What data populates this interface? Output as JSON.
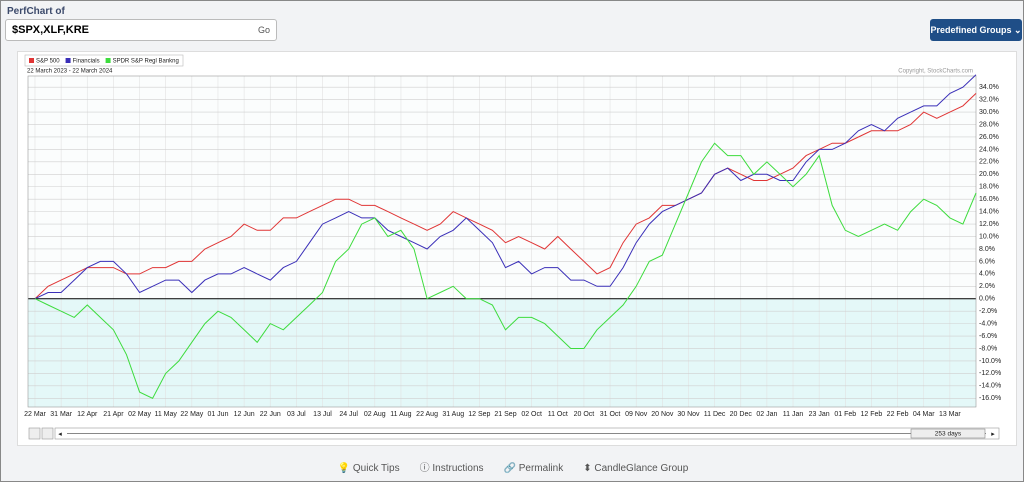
{
  "header": {
    "title": "PerfChart of",
    "symbols": "$SPX,XLF,KRE",
    "go": "Go",
    "groups_button": "Predefined Groups"
  },
  "chart_data": {
    "type": "line",
    "subtitle": "22 March 2023 - 22 March 2024",
    "annotation": "Copyright, StockCharts.com",
    "categories": [
      "22 Mar",
      null,
      "31 Mar",
      null,
      "12 Apr",
      null,
      "21 Apr",
      null,
      "02 May",
      null,
      "11 May",
      null,
      "22 May",
      null,
      "01 Jun",
      null,
      "12 Jun",
      null,
      "22 Jun",
      null,
      "03 Jul",
      null,
      "13 Jul",
      null,
      "24 Jul",
      null,
      "02 Aug",
      null,
      "11 Aug",
      null,
      "22 Aug",
      null,
      "31 Aug",
      null,
      "12 Sep",
      null,
      "21 Sep",
      null,
      "02 Oct",
      null,
      "11 Oct",
      null,
      "20 Oct",
      null,
      "31 Oct",
      null,
      "09 Nov",
      null,
      "20 Nov",
      null,
      "30 Nov",
      null,
      "11 Dec",
      null,
      "20 Dec",
      null,
      "02 Jan",
      null,
      "11 Jan",
      null,
      "23 Jan",
      null,
      "01 Feb",
      null,
      "12 Feb",
      null,
      "22 Feb",
      null,
      "04 Mar",
      null,
      "13 Mar",
      null,
      null
    ],
    "series": [
      {
        "name": "S&P 500",
        "color": "#e03535",
        "values": [
          0,
          2,
          3,
          4,
          5,
          5,
          5,
          4,
          4,
          5,
          5,
          6,
          6,
          8,
          9,
          10,
          12,
          11,
          11,
          13,
          13,
          14,
          15,
          16,
          16,
          15,
          15,
          14,
          13,
          12,
          11,
          12,
          14,
          13,
          12,
          11,
          9,
          10,
          9,
          8,
          10,
          8,
          6,
          4,
          5,
          9,
          12,
          13,
          15,
          15,
          16,
          17,
          20,
          21,
          20,
          19,
          19,
          20,
          21,
          23,
          24,
          25,
          25,
          26,
          27,
          27,
          27,
          28,
          30,
          29,
          30,
          31,
          33
        ]
      },
      {
        "name": "Financials",
        "color": "#3a2fb8",
        "values": [
          0,
          1,
          1,
          3,
          5,
          6,
          6,
          4,
          1,
          2,
          3,
          3,
          1,
          3,
          4,
          4,
          5,
          4,
          3,
          5,
          6,
          9,
          12,
          13,
          14,
          13,
          13,
          11,
          10,
          9,
          8,
          10,
          11,
          13,
          11,
          9,
          5,
          6,
          4,
          5,
          5,
          3,
          3,
          2,
          2,
          5,
          9,
          12,
          14,
          15,
          16,
          17,
          20,
          21,
          19,
          20,
          20,
          19,
          19,
          22,
          24,
          24,
          25,
          27,
          28,
          27,
          29,
          30,
          31,
          31,
          33,
          34,
          36
        ]
      },
      {
        "name": "SPDR S&P Regl Bankng",
        "color": "#3ddc3d",
        "values": [
          0,
          -1,
          -2,
          -3,
          -1,
          -3,
          -5,
          -9,
          -15,
          -16,
          -12,
          -10,
          -7,
          -4,
          -2,
          -3,
          -5,
          -7,
          -4,
          -5,
          -3,
          -1,
          1,
          6,
          8,
          12,
          13,
          10,
          11,
          8,
          0,
          1,
          2,
          0,
          0,
          -1,
          -5,
          -3,
          -3,
          -4,
          -6,
          -8,
          -8,
          -5,
          -3,
          -1,
          2,
          6,
          7,
          12,
          17,
          22,
          25,
          23,
          23,
          20,
          22,
          20,
          18,
          20,
          23,
          15,
          11,
          10,
          11,
          12,
          11,
          14,
          16,
          15,
          13,
          12,
          17
        ]
      }
    ],
    "ylim": [
      -17.4,
      35.8
    ],
    "yticks": [
      {
        "value": -16,
        "label": "-16.0%"
      },
      {
        "value": -14,
        "label": "-14.0%"
      },
      {
        "value": -12,
        "label": "-12.0%"
      },
      {
        "value": -10,
        "label": "-10.0%"
      },
      {
        "value": -8,
        "label": "-8.0%"
      },
      {
        "value": -6,
        "label": "-6.0%"
      },
      {
        "value": -4,
        "label": "-4.0%"
      },
      {
        "value": -2,
        "label": "-2.0%"
      },
      {
        "value": 0,
        "label": "0.0%"
      },
      {
        "value": 2,
        "label": "2.0%"
      },
      {
        "value": 4,
        "label": "4.0%"
      },
      {
        "value": 6,
        "label": "6.0%"
      },
      {
        "value": 8,
        "label": "8.0%"
      },
      {
        "value": 10,
        "label": "10.0%"
      },
      {
        "value": 12,
        "label": "12.0%"
      },
      {
        "value": 14,
        "label": "14.0%"
      },
      {
        "value": 16,
        "label": "16.0%"
      },
      {
        "value": 18,
        "label": "18.0%"
      },
      {
        "value": 20,
        "label": "20.0%"
      },
      {
        "value": 22,
        "label": "22.0%"
      },
      {
        "value": 24,
        "label": "24.0%"
      },
      {
        "value": 26,
        "label": "26.0%"
      },
      {
        "value": 28,
        "label": "28.0%"
      },
      {
        "value": 30,
        "label": "30.0%"
      },
      {
        "value": 32,
        "label": "32.0%"
      },
      {
        "value": 34,
        "label": "34.0%"
      }
    ],
    "grid": true
  },
  "scrollbar": {
    "period": "253 days"
  },
  "footer": {
    "links": [
      "Quick Tips",
      "Instructions",
      "Permalink",
      "CandleGlance Group"
    ]
  }
}
